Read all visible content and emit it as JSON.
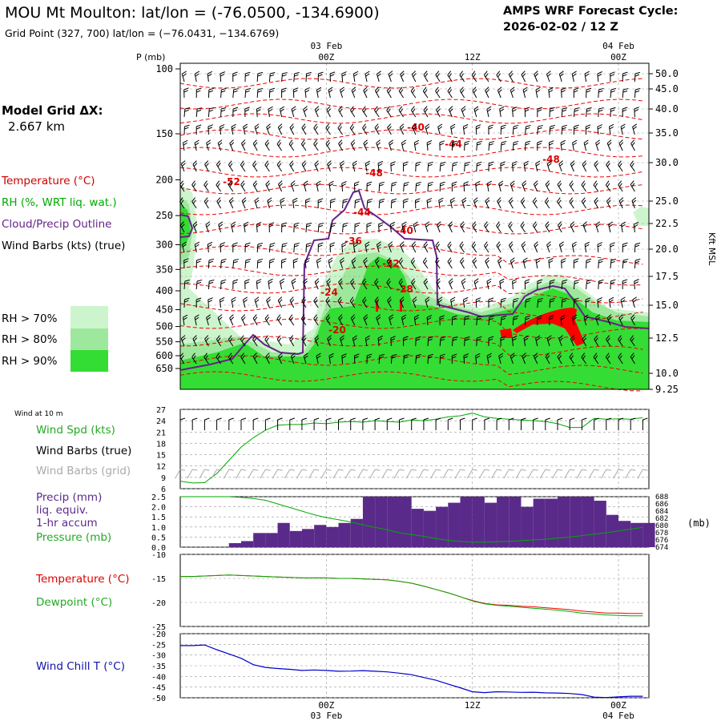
{
  "header": {
    "title": "MOU Mt Moulton:  lat/lon = (-76.0500, -134.6900)",
    "grid_point": "Grid Point (327, 700) lat/lon = (−76.0431, −134.6769)",
    "cycle_line1": "AMPS WRF Forecast Cycle:",
    "cycle_line2": "2026-02-02 / 12  Z",
    "model_grid_label": "Model Grid ΔX:",
    "model_grid_value": "2.667 km"
  },
  "time_axis": {
    "top_labels": [
      {
        "t": 12,
        "date": "03 Feb",
        "hour": "00Z"
      },
      {
        "t": 24,
        "date": "",
        "hour": "12Z"
      },
      {
        "t": 36,
        "date": "04 Feb",
        "hour": "00Z"
      }
    ],
    "bottom_labels": [
      {
        "t": 12,
        "hour": "00Z",
        "date": "03 Feb"
      },
      {
        "t": 24,
        "hour": "12Z",
        "date": ""
      },
      {
        "t": 36,
        "hour": "00Z",
        "date": "04 Feb"
      }
    ],
    "t_range": [
      0,
      38.5
    ]
  },
  "colors": {
    "temperature": "#ff0000",
    "rh": "#00aa00",
    "cloud": "#662288",
    "wind": "#000000",
    "grid_wind": "#aaaaaa",
    "precip": "#5a2a8a",
    "windchill": "#0000cc",
    "rh70": "#cdf5cd",
    "rh80": "#9ee89e",
    "rh90": "#33dd33"
  },
  "main_panel": {
    "p_label": "P (mb)",
    "right_label": "Kft MSL",
    "p_ticks": [
      100,
      150,
      200,
      250,
      300,
      350,
      400,
      450,
      500,
      550,
      600,
      650
    ],
    "kft_ticks": [
      "50.0",
      "45.0",
      "40.0",
      "35.0",
      "30.0",
      "25.0",
      "22.5",
      "20.0",
      "17.5",
      "15.0",
      "12.5",
      "10.0",
      "9.25"
    ],
    "legend": {
      "temperature": "Temperature (°C)",
      "rh": "RH (%, WRT liq. wat.)",
      "cloud": "Cloud/Precip Outline",
      "wind": "Wind Barbs (kts) (true)",
      "rh70": "RH > 70%",
      "rh80": "RH > 80%",
      "rh90": "RH > 90%"
    },
    "temp_labels": [
      "-40",
      "-44",
      "-48",
      "-52",
      "-48",
      "-44",
      "-40",
      "-36",
      "-32",
      "-28",
      "-24",
      "-20"
    ]
  },
  "wind_panel": {
    "title": "Wind at 10 m",
    "label_speed": "Wind Spd (kts)",
    "label_true": "Wind Barbs (true)",
    "label_grid": "Wind Barbs (grid)",
    "y_ticks": [
      6,
      9,
      12,
      15,
      18,
      21,
      24,
      27
    ]
  },
  "precip_panel": {
    "label_precip": "Precip (mm)",
    "label_liq": "liq. equiv.",
    "label_accum": "1-hr accum",
    "label_pres": "Pressure (mb)",
    "unit_right": "(mb)",
    "y_ticks": [
      "0.0",
      "0.5",
      "1.0",
      "1.5",
      "2.0",
      "2.5"
    ],
    "p_ticks": [
      "674",
      "676",
      "678",
      "680",
      "682",
      "684",
      "686",
      "688"
    ]
  },
  "temp_panel": {
    "label_temp": "Temperature (°C)",
    "label_dew": "Dewpoint (°C)",
    "y_ticks": [
      "-10",
      "-15",
      "-20",
      "-25"
    ]
  },
  "chill_panel": {
    "label": "Wind Chill T (°C)",
    "y_ticks": [
      "-20",
      "-25",
      "-30",
      "-35",
      "-40",
      "-45",
      "-50"
    ]
  },
  "chart_data": [
    {
      "type": "line",
      "title": "Wind at 10 m",
      "series": [
        {
          "name": "Wind Spd (kts)",
          "t": [
            0,
            1,
            2,
            3,
            4,
            5,
            6,
            7,
            8,
            9,
            10,
            11,
            12,
            13,
            14,
            15,
            16,
            17,
            18,
            19,
            20,
            21,
            22,
            23,
            24,
            25,
            26,
            27,
            28,
            29,
            30,
            31,
            32,
            33,
            34,
            35,
            36,
            37,
            38
          ],
          "values": [
            8,
            7.5,
            7.6,
            10,
            13.5,
            17,
            19.5,
            21.5,
            22.8,
            23,
            23,
            23.4,
            23.2,
            23.6,
            23.8,
            23.6,
            24,
            23.8,
            23.6,
            24.2,
            24,
            24.4,
            25,
            25.3,
            26,
            25,
            24.6,
            24.4,
            24.2,
            24,
            23.8,
            23.2,
            22.2,
            22.2,
            24.6,
            24.4,
            24.5,
            24.4,
            24.8
          ]
        }
      ],
      "ylim": [
        6,
        27
      ]
    },
    {
      "type": "bar",
      "title": "Precip (mm) liq. equiv. 1-hr accum",
      "t": [
        0,
        1,
        2,
        3,
        4,
        5,
        6,
        7,
        8,
        9,
        10,
        11,
        12,
        13,
        14,
        15,
        16,
        17,
        18,
        19,
        20,
        21,
        22,
        23,
        24,
        25,
        26,
        27,
        28,
        29,
        30,
        31,
        32,
        33,
        34,
        35,
        36,
        37,
        38
      ],
      "values": [
        0,
        0,
        0,
        0,
        0.2,
        0.3,
        0.7,
        0.7,
        1.2,
        0.8,
        0.9,
        1.1,
        1.0,
        1.2,
        1.4,
        2.5,
        2.5,
        2.5,
        2.5,
        1.9,
        1.8,
        2.0,
        2.2,
        2.5,
        2.5,
        2.2,
        2.5,
        2.5,
        2.0,
        2.4,
        2.4,
        2.5,
        2.5,
        2.5,
        2.3,
        1.6,
        1.3,
        1.2,
        1.2
      ],
      "ylim": [
        0,
        2.5
      ],
      "series_pressure": {
        "name": "Pressure (mb)",
        "values": [
          688,
          688,
          688,
          688,
          688,
          687.8,
          687.5,
          687,
          686,
          685,
          684,
          683,
          682.2,
          681.6,
          681,
          680.2,
          679.5,
          678.8,
          678,
          677.5,
          677,
          676.4,
          675.9,
          675.6,
          675.4,
          675.4,
          675.5,
          675.6,
          675.8,
          676,
          676.2,
          676.5,
          676.8,
          677.2,
          677.6,
          678,
          678.5,
          679,
          679.5
        ],
        "ylim": [
          674,
          688
        ]
      }
    },
    {
      "type": "line",
      "title": "Temperature / Dewpoint",
      "series": [
        {
          "name": "Temperature (°C)",
          "values": [
            -14.6,
            -14.6,
            -14.5,
            -14.4,
            -14.3,
            -14.4,
            -14.5,
            -14.6,
            -14.7,
            -14.8,
            -14.9,
            -14.9,
            -14.9,
            -15.0,
            -15.0,
            -15.1,
            -15.2,
            -15.3,
            -15.6,
            -16.0,
            -16.6,
            -17.3,
            -18.0,
            -18.8,
            -19.6,
            -20.2,
            -20.5,
            -20.6,
            -20.8,
            -20.9,
            -21.1,
            -21.3,
            -21.5,
            -21.8,
            -22.0,
            -22.2,
            -22.2,
            -22.3,
            -22.3
          ],
          "color": "#ff0000"
        },
        {
          "name": "Dewpoint (°C)",
          "values": [
            -14.6,
            -14.6,
            -14.5,
            -14.4,
            -14.3,
            -14.4,
            -14.5,
            -14.6,
            -14.7,
            -14.8,
            -14.9,
            -14.9,
            -14.9,
            -15.0,
            -15.0,
            -15.1,
            -15.2,
            -15.3,
            -15.6,
            -16.0,
            -16.6,
            -17.3,
            -18.0,
            -18.8,
            -19.7,
            -20.3,
            -20.6,
            -20.8,
            -21.0,
            -21.2,
            -21.4,
            -21.6,
            -21.9,
            -22.2,
            -22.4,
            -22.6,
            -22.7,
            -22.8,
            -22.8
          ],
          "color": "#00aa00"
        }
      ],
      "ylim": [
        -25,
        -10
      ]
    },
    {
      "type": "line",
      "title": "Wind Chill T (°C)",
      "series": [
        {
          "name": "Wind Chill T (°C)",
          "values": [
            -25.6,
            -25.6,
            -25.3,
            -27.5,
            -29.5,
            -31.5,
            -34.5,
            -35.8,
            -36.3,
            -36.7,
            -37.2,
            -37.0,
            -37.2,
            -37.6,
            -37.5,
            -37.3,
            -37.6,
            -37.9,
            -38.5,
            -39.2,
            -40.5,
            -41.8,
            -43.6,
            -45.3,
            -47.2,
            -47.6,
            -47.2,
            -47.3,
            -47.5,
            -47.4,
            -47.7,
            -47.8,
            -48.0,
            -48.5,
            -49.7,
            -49.9,
            -49.6,
            -49.3,
            -49.3
          ],
          "color": "#0000cc"
        }
      ],
      "ylim": [
        -50,
        -20
      ]
    }
  ]
}
